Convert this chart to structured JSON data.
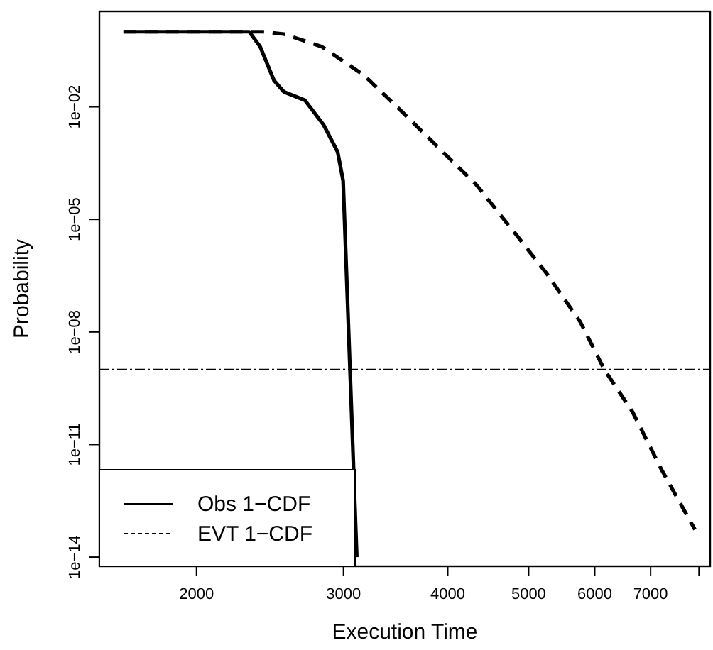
{
  "chart_data": {
    "type": "line",
    "xlabel": "Execution Time",
    "ylabel": "Probability",
    "log": "xy",
    "xlim": [
      1530,
      8250
    ],
    "ylim": [
      5.7e-15,
      3.5
    ],
    "xticks": [
      2000,
      3000,
      4000,
      5000,
      6000,
      7000,
      {
        "value": 8000,
        "label": null
      }
    ],
    "yticks": [
      {
        "value": 0.01,
        "label": "1e−02"
      },
      {
        "value": 1e-05,
        "label": "1e−05"
      },
      {
        "value": 1e-08,
        "label": "1e−08"
      },
      {
        "value": 1e-11,
        "label": "1e−11"
      },
      {
        "value": 1e-14,
        "label": "1e−14"
      }
    ],
    "grid": false,
    "legend": "bottom left",
    "marker": "none",
    "ref_lines": [
      {
        "axis": "y",
        "value": 1e-09,
        "line_style": "dashdot",
        "color": "#000000"
      }
    ],
    "series": [
      {
        "name": "Obs 1−CDF",
        "color": "#000000",
        "line_style": "solid",
        "x": [
          1635,
          2000,
          2313,
          2384,
          2477,
          2546,
          2697,
          2840,
          2952,
          2997,
          3043,
          3112
        ],
        "values": [
          1,
          1,
          1,
          0.4,
          0.05,
          0.025,
          0.015,
          0.0033,
          0.00063,
          0.000107,
          1e-08,
          1e-14
        ]
      },
      {
        "name": "EVT 1−CDF",
        "color": "#000000",
        "line_style": "dashed",
        "x": [
          1635,
          2000,
          2400,
          2546,
          2826,
          3176,
          3499,
          3884,
          4325,
          4800,
          5260,
          5770,
          6160,
          6660,
          7210,
          7910
        ],
        "values": [
          1,
          1,
          1,
          0.87,
          0.4,
          0.069,
          0.0087,
          0.00089,
          8.5e-05,
          4.7e-06,
          3.5e-07,
          1.8e-08,
          1e-09,
          7.4e-11,
          2.2e-12,
          5.4e-14
        ]
      }
    ]
  }
}
